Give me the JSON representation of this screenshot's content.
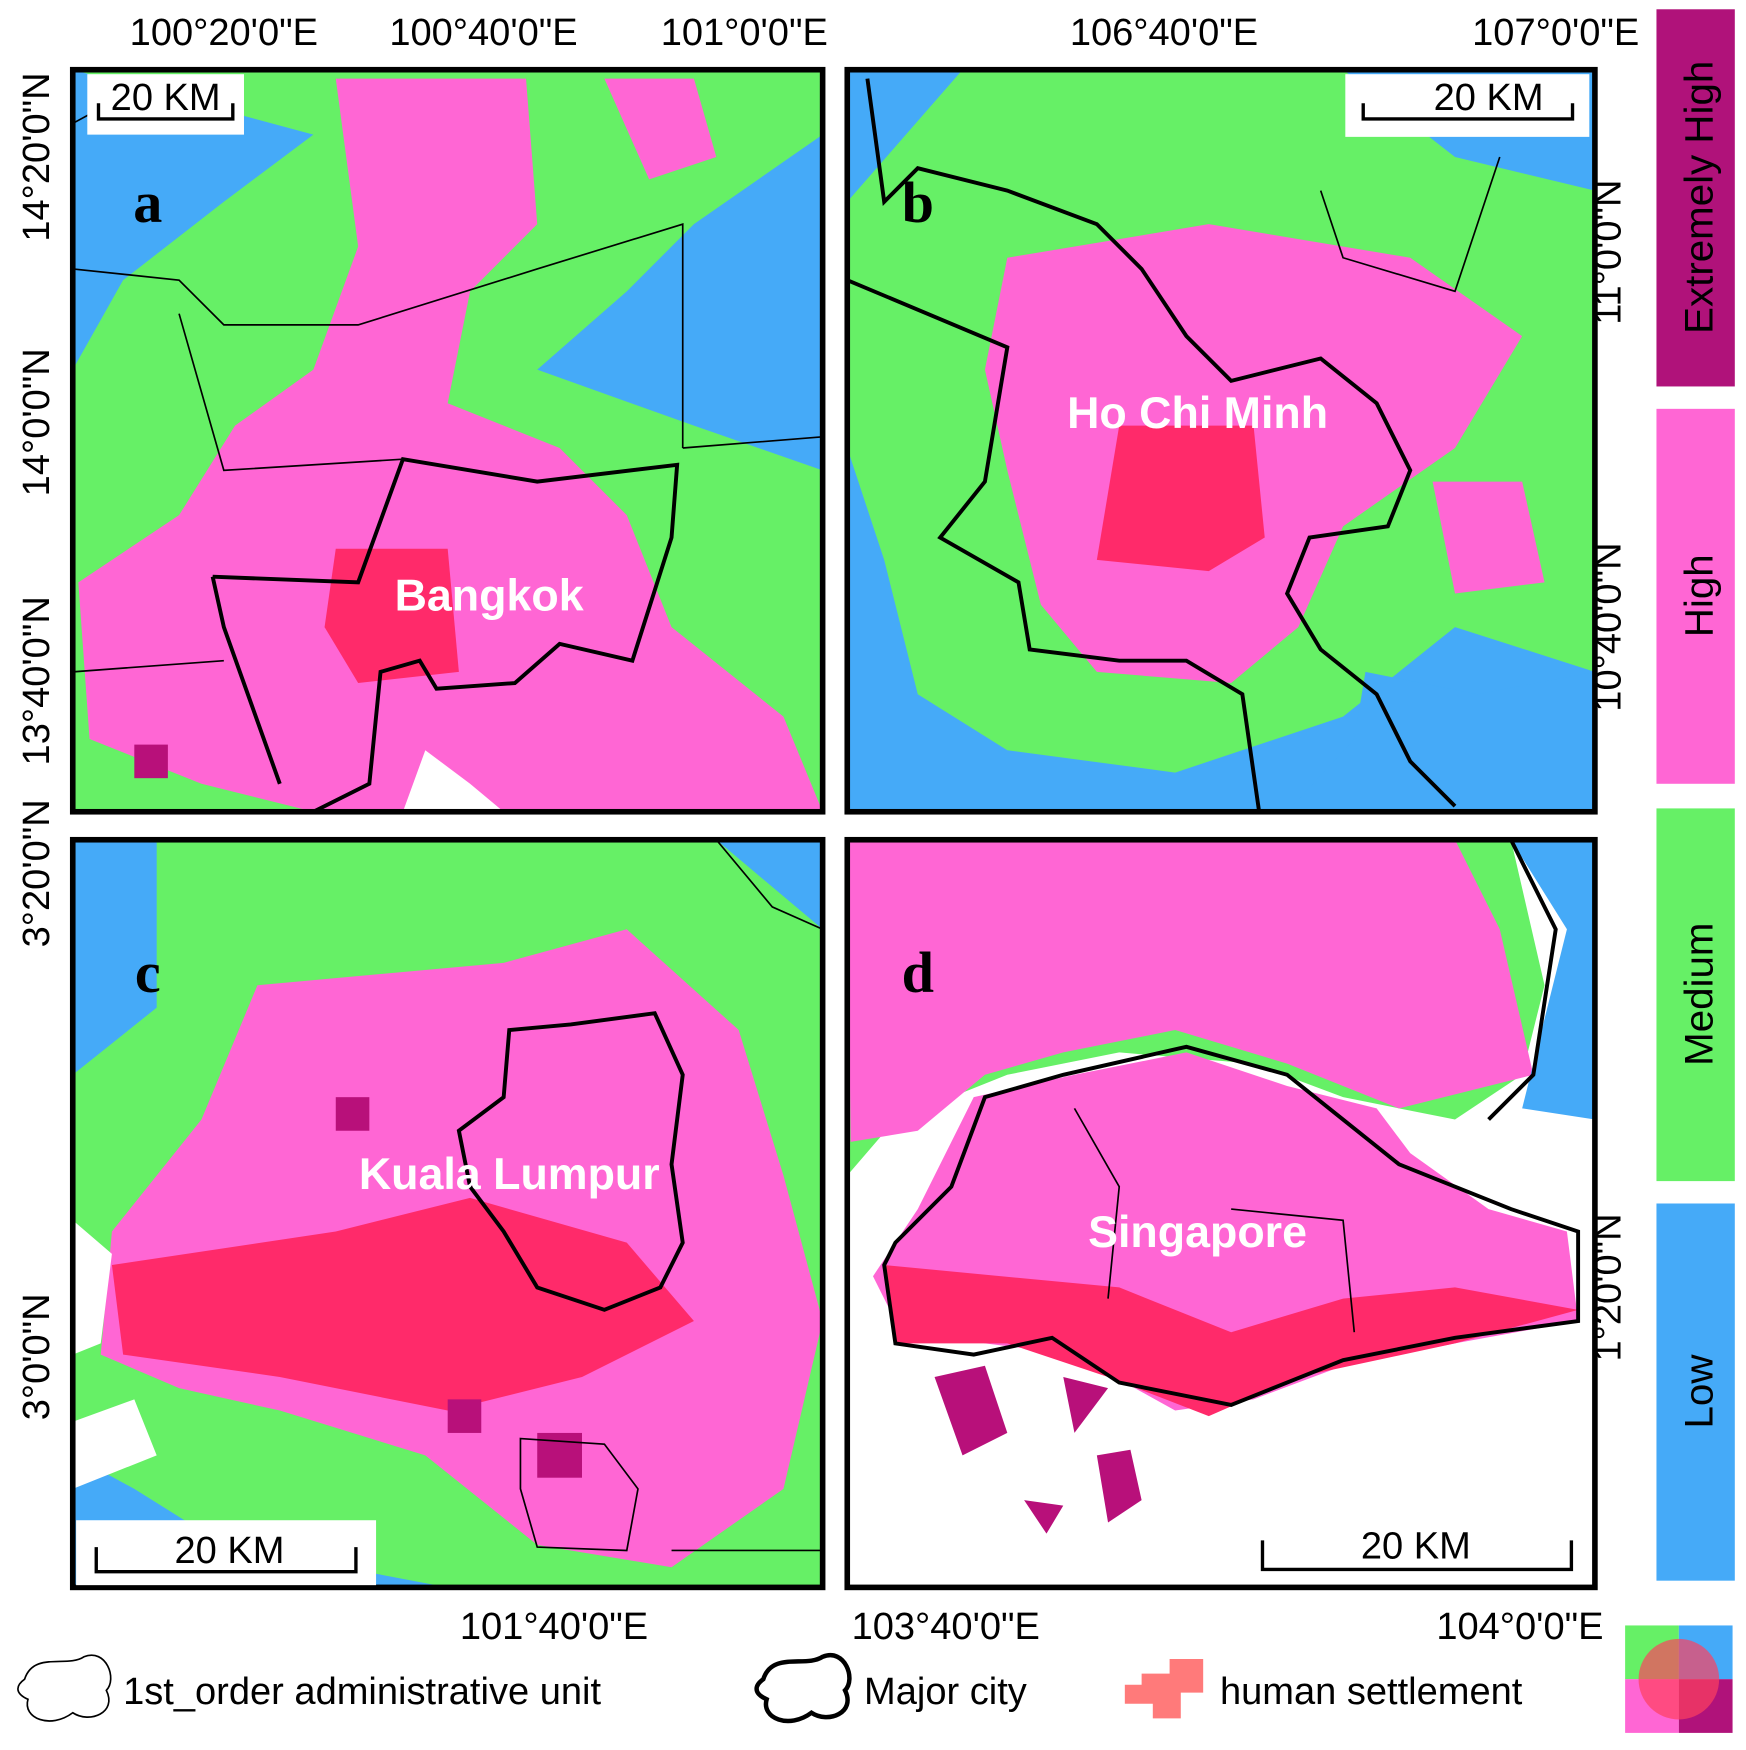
{
  "panels": [
    {
      "letter": "a",
      "city": "Bangkok",
      "scale_label": "20 KM",
      "ticks": [
        "100°20'0\"E",
        "100°40'0\"E",
        "101°0'0\"E",
        "14°20'0\"N",
        "14°0'0\"N",
        "13°40'0\"N"
      ]
    },
    {
      "letter": "b",
      "city": "Ho Chi Minh",
      "scale_label": "20 KM",
      "ticks": [
        "106°40'0\"E",
        "107°0'0\"E",
        "11°0'0\"N",
        "10°40'0\"N"
      ]
    },
    {
      "letter": "c",
      "city": "Kuala Lumpur",
      "scale_label": "20 KM",
      "ticks": [
        "3°20'0\"N",
        "3°0'0\"N",
        "101°40'0\"E"
      ]
    },
    {
      "letter": "d",
      "city": "Singapore",
      "scale_label": "20 KM",
      "ticks": [
        "103°40'0\"E",
        "104°0'0\"E",
        "1°20'0\"N"
      ]
    }
  ],
  "legend": {
    "classes": [
      "Extremely High",
      "High",
      "Medium",
      "Low"
    ],
    "items": [
      "1st_order administrative unit",
      "Major city",
      "human settlement"
    ]
  }
}
